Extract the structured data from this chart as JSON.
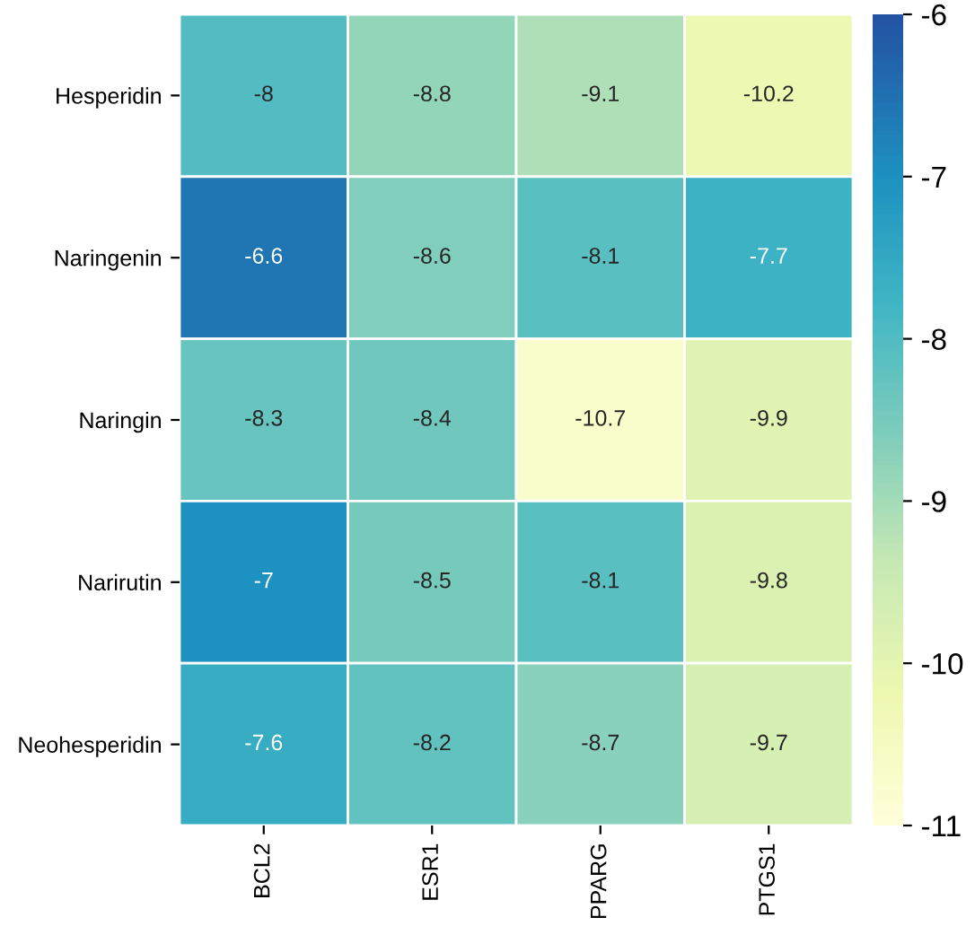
{
  "chart_data": {
    "type": "heatmap",
    "categories": [
      "BCL2",
      "ESR1",
      "PPARG",
      "PTGS1"
    ],
    "y_categories": [
      "Hesperidin",
      "Naringenin",
      "Naringin",
      "Narirutin",
      "Neohesperidin"
    ],
    "cells": [
      [
        -8,
        -8.8,
        -9.1,
        -10.2
      ],
      [
        -6.6,
        -8.6,
        -8.1,
        -7.7
      ],
      [
        -8.3,
        -8.4,
        -10.7,
        -9.9
      ],
      [
        -7,
        -8.5,
        -8.1,
        -9.8
      ],
      [
        -7.6,
        -8.2,
        -8.7,
        -9.7
      ]
    ],
    "clim": [
      -11,
      -6
    ],
    "cticks": [
      -11,
      -10,
      -9,
      -8,
      -7,
      -6
    ],
    "data_labels": true
  }
}
